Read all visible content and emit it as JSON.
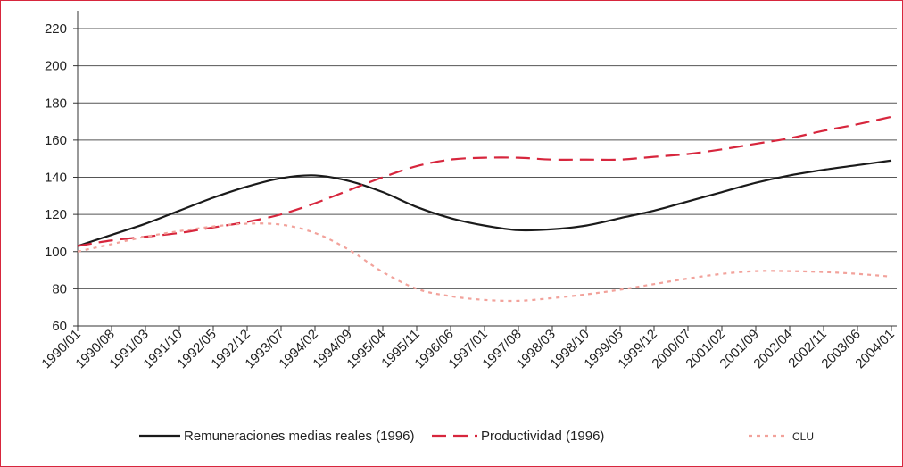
{
  "chart_data": {
    "type": "line",
    "categories": [
      "1990/01",
      "1990/08",
      "1991/03",
      "1991/10",
      "1992/05",
      "1992/12",
      "1993/07",
      "1994/02",
      "1994/09",
      "1995/04",
      "1995/11",
      "1996/06",
      "1997/01",
      "1997/08",
      "1998/03",
      "1998/10",
      "1999/05",
      "1999/12",
      "2000/07",
      "2001/02",
      "2001/09",
      "2002/04",
      "2002/11",
      "2003/06",
      "2004/01"
    ],
    "series": [
      {
        "name": "Remuneraciones medias reales (1996)",
        "color": "#1a1a1a",
        "style": "solid",
        "values": [
          103,
          109,
          115,
          122,
          129,
          135,
          139.5,
          141,
          138,
          132,
          124,
          118,
          114,
          111.5,
          112,
          114,
          118,
          122,
          127,
          132,
          137,
          141,
          144,
          146.5,
          149
        ]
      },
      {
        "name": "Productividad (1996)",
        "color": "#d7263d",
        "style": "dashed",
        "values": [
          103,
          106,
          108,
          110,
          113,
          116,
          120,
          126,
          133,
          140,
          146,
          149.5,
          150.5,
          150.5,
          149.5,
          149.5,
          149.5,
          151,
          152.5,
          155,
          158,
          161,
          165,
          168.5,
          172.5
        ]
      },
      {
        "name": "CLU",
        "color": "#f2a29b",
        "style": "dotted",
        "values": [
          100,
          104,
          108,
          111,
          113.5,
          115,
          114.5,
          110,
          101,
          89,
          80,
          76,
          74,
          73.5,
          75,
          77,
          79.5,
          82.5,
          85.5,
          88,
          89.5,
          89.5,
          89,
          88,
          86.5
        ]
      }
    ],
    "ylim": [
      60,
      220
    ],
    "yticks": [
      60,
      80,
      100,
      120,
      140,
      160,
      180,
      200,
      220
    ],
    "grid": true
  }
}
